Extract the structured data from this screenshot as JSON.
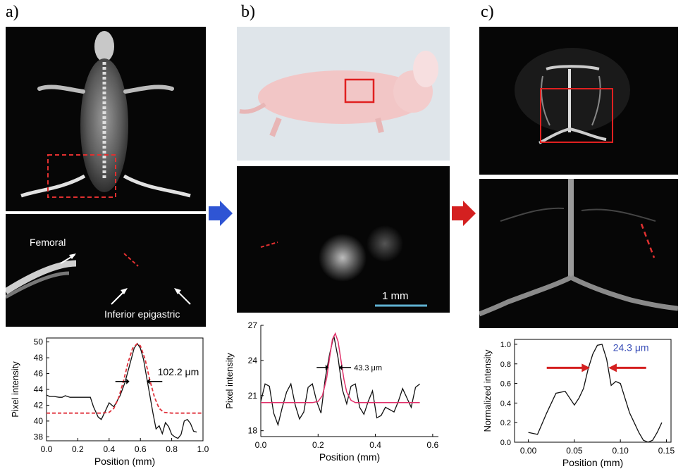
{
  "panel_labels": [
    "a)",
    "b)",
    "c)"
  ],
  "annotations": {
    "femoral": "Femoral",
    "inferior_epigastric": "Inferior epigastric",
    "scale_bar": "1 mm"
  },
  "colors": {
    "measured": "#111111",
    "fit_a": "#e0303a",
    "fit_b": "#e0306a",
    "arrow_blue": "#2f55d4",
    "arrow_red": "#d42020",
    "width_label_c": "#3a4fb8",
    "scale_bar": "#5fb0d0"
  },
  "chart_data": [
    {
      "type": "line",
      "xlabel": "Position (mm)",
      "ylabel": "Pixel intensity",
      "xlim": [
        0.0,
        1.0
      ],
      "ylim": [
        37.5,
        50.5
      ],
      "xticks": [
        "0.0",
        "0.2",
        "0.4",
        "0.6",
        "0.8",
        "1.0"
      ],
      "yticks": [
        "38",
        "40",
        "42",
        "44",
        "46",
        "48",
        "50"
      ],
      "annotation": "102.2 μm",
      "series": [
        {
          "style": "solid",
          "x": [
            0.0,
            0.02,
            0.05,
            0.08,
            0.1,
            0.12,
            0.15,
            0.2,
            0.25,
            0.28,
            0.3,
            0.33,
            0.35,
            0.37,
            0.4,
            0.43,
            0.45,
            0.47,
            0.5,
            0.53,
            0.56,
            0.58,
            0.6,
            0.62,
            0.64,
            0.66,
            0.68,
            0.7,
            0.72,
            0.74,
            0.76,
            0.78,
            0.8,
            0.82,
            0.84,
            0.86,
            0.88,
            0.9,
            0.92,
            0.94,
            0.96
          ],
          "y": [
            43.3,
            43.1,
            43.1,
            43.0,
            43.0,
            43.2,
            43.0,
            43.0,
            43.0,
            43.0,
            41.8,
            40.5,
            40.2,
            41.0,
            42.3,
            41.8,
            42.5,
            43.2,
            44.8,
            47.0,
            49.2,
            49.8,
            49.2,
            47.8,
            45.5,
            43.3,
            41.0,
            39.0,
            39.4,
            38.4,
            39.8,
            39.3,
            38.3,
            38.0,
            37.8,
            38.3,
            40.0,
            40.2,
            39.7,
            38.7,
            38.6
          ]
        },
        {
          "style": "dashed",
          "x": [
            0.0,
            0.05,
            0.1,
            0.15,
            0.2,
            0.25,
            0.3,
            0.35,
            0.4,
            0.43,
            0.46,
            0.49,
            0.52,
            0.55,
            0.58,
            0.6,
            0.63,
            0.66,
            0.69,
            0.72,
            0.75,
            0.8,
            0.85,
            0.9,
            0.95,
            1.0
          ],
          "y": [
            41.0,
            41.0,
            41.0,
            41.0,
            41.0,
            41.0,
            41.0,
            41.0,
            41.1,
            41.6,
            42.9,
            44.9,
            47.3,
            49.2,
            49.8,
            49.5,
            47.8,
            45.2,
            43.0,
            41.6,
            41.1,
            41.0,
            41.0,
            41.0,
            41.0,
            41.0
          ]
        }
      ]
    },
    {
      "type": "line",
      "xlabel": "Position (mm)",
      "ylabel": "Pixel intensity",
      "xlim": [
        0.0,
        0.62
      ],
      "ylim": [
        17.5,
        27.0
      ],
      "xticks": [
        "0.0",
        "0.2",
        "0.4",
        "0.6"
      ],
      "yticks": [
        "18",
        "21",
        "24",
        "27"
      ],
      "annotation": "43.3 μm",
      "series": [
        {
          "style": "solid",
          "x": [
            0.0,
            0.015,
            0.03,
            0.045,
            0.06,
            0.075,
            0.09,
            0.105,
            0.12,
            0.135,
            0.15,
            0.165,
            0.18,
            0.195,
            0.21,
            0.225,
            0.24,
            0.255,
            0.27,
            0.285,
            0.3,
            0.315,
            0.33,
            0.345,
            0.36,
            0.375,
            0.39,
            0.405,
            0.42,
            0.435,
            0.45,
            0.465,
            0.48,
            0.495,
            0.51,
            0.525,
            0.54,
            0.555
          ],
          "y": [
            20.5,
            22.0,
            21.8,
            19.5,
            18.5,
            20.0,
            21.3,
            22.0,
            20.2,
            19.0,
            19.6,
            21.7,
            22.0,
            20.5,
            19.5,
            22.5,
            24.5,
            26.1,
            24.2,
            21.5,
            20.3,
            21.8,
            22.0,
            20.0,
            19.4,
            20.5,
            21.4,
            19.1,
            19.3,
            20.0,
            19.8,
            19.6,
            20.5,
            21.6,
            20.8,
            20.0,
            21.7,
            22.0
          ]
        },
        {
          "style": "fit",
          "x": [
            0.0,
            0.05,
            0.1,
            0.15,
            0.18,
            0.2,
            0.215,
            0.23,
            0.24,
            0.25,
            0.26,
            0.27,
            0.28,
            0.29,
            0.3,
            0.315,
            0.33,
            0.36,
            0.4,
            0.45,
            0.5,
            0.555
          ],
          "y": [
            20.4,
            20.4,
            20.4,
            20.4,
            20.4,
            20.5,
            21.0,
            22.5,
            24.2,
            25.8,
            26.3,
            25.6,
            24.0,
            22.4,
            21.3,
            20.6,
            20.4,
            20.4,
            20.4,
            20.4,
            20.4,
            20.4
          ]
        }
      ]
    },
    {
      "type": "line",
      "xlabel": "Position (mm)",
      "ylabel": "Normalized intensity",
      "xlim": [
        -0.015,
        0.155
      ],
      "ylim": [
        0.0,
        1.05
      ],
      "xticks": [
        "0.00",
        "0.05",
        "0.10",
        "0.15"
      ],
      "yticks": [
        "0.0",
        "0.2",
        "0.4",
        "0.6",
        "0.8",
        "1.0"
      ],
      "annotation": "24.3 μm",
      "series": [
        {
          "style": "solid",
          "x": [
            0.0,
            0.01,
            0.02,
            0.03,
            0.04,
            0.05,
            0.055,
            0.06,
            0.065,
            0.07,
            0.075,
            0.08,
            0.085,
            0.09,
            0.095,
            0.1,
            0.105,
            0.11,
            0.115,
            0.12,
            0.125,
            0.13,
            0.135,
            0.14,
            0.145
          ],
          "y": [
            0.1,
            0.08,
            0.3,
            0.5,
            0.52,
            0.38,
            0.45,
            0.55,
            0.75,
            0.9,
            0.99,
            1.0,
            0.85,
            0.58,
            0.62,
            0.6,
            0.45,
            0.3,
            0.2,
            0.1,
            0.02,
            0.0,
            0.02,
            0.1,
            0.2
          ]
        }
      ]
    }
  ]
}
